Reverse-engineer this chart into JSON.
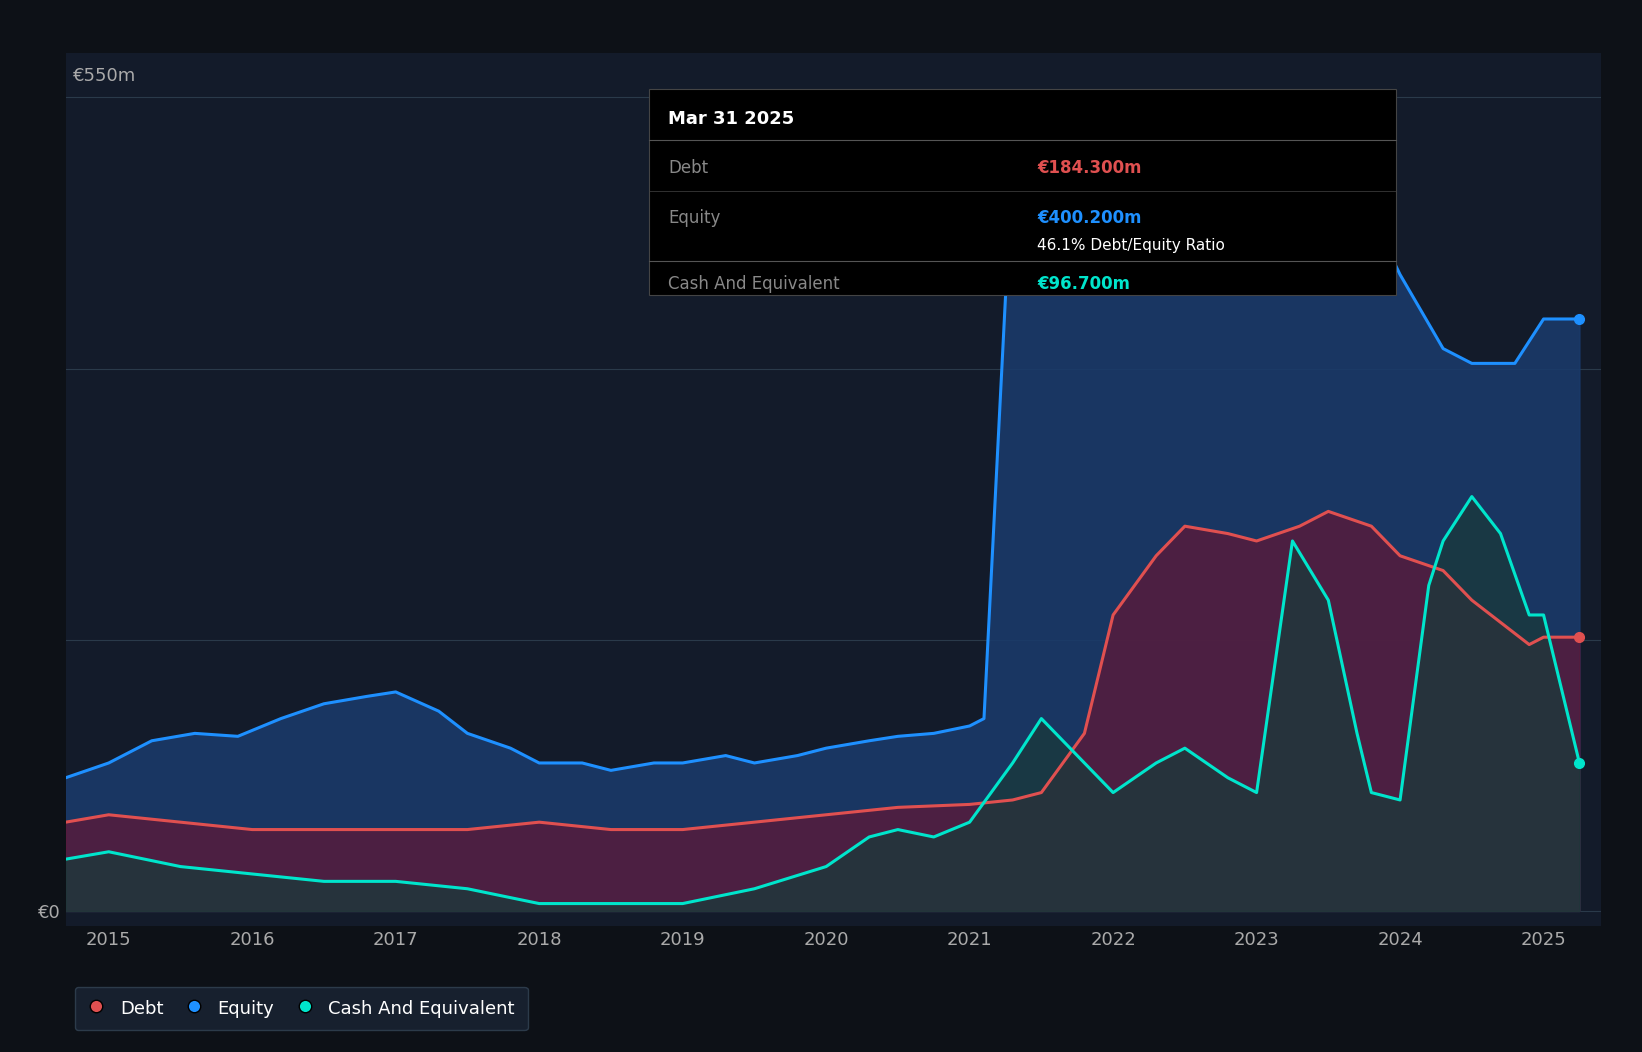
{
  "background_color": "#0d1117",
  "plot_bg_color": "#131b2a",
  "grid_color": "#2a3a4a",
  "ylabel_550": "€550m",
  "ylabel_0": "€0",
  "equity_color": "#1e90ff",
  "equity_fill": "#1a3a6a",
  "debt_color": "#e05050",
  "debt_fill": "#5a1a3a",
  "cash_color": "#00e5cc",
  "cash_fill": "#1a3a3a",
  "equity_data_x": [
    2014.7,
    2015.0,
    2015.3,
    2015.6,
    2015.9,
    2016.2,
    2016.5,
    2016.8,
    2017.0,
    2017.3,
    2017.5,
    2017.8,
    2018.0,
    2018.3,
    2018.5,
    2018.8,
    2019.0,
    2019.3,
    2019.5,
    2019.8,
    2020.0,
    2020.3,
    2020.5,
    2020.75,
    2021.0,
    2021.1,
    2021.3,
    2021.5,
    2021.8,
    2022.0,
    2022.3,
    2022.5,
    2022.8,
    2023.0,
    2023.3,
    2023.5,
    2023.8,
    2024.0,
    2024.3,
    2024.5,
    2024.8,
    2025.0,
    2025.25
  ],
  "equity_data_y": [
    90,
    100,
    115,
    120,
    118,
    130,
    140,
    145,
    148,
    135,
    120,
    110,
    100,
    100,
    95,
    100,
    100,
    105,
    100,
    105,
    110,
    115,
    118,
    120,
    125,
    130,
    510,
    550,
    540,
    530,
    490,
    490,
    460,
    450,
    490,
    470,
    470,
    430,
    380,
    370,
    370,
    400,
    400
  ],
  "debt_data_x": [
    2014.7,
    2015.0,
    2015.5,
    2016.0,
    2016.5,
    2017.0,
    2017.5,
    2018.0,
    2018.5,
    2019.0,
    2019.5,
    2020.0,
    2020.5,
    2021.0,
    2021.3,
    2021.5,
    2021.8,
    2022.0,
    2022.3,
    2022.5,
    2022.8,
    2023.0,
    2023.3,
    2023.5,
    2023.8,
    2024.0,
    2024.3,
    2024.5,
    2024.7,
    2024.9,
    2025.0,
    2025.25
  ],
  "debt_data_y": [
    60,
    65,
    60,
    55,
    55,
    55,
    55,
    60,
    55,
    55,
    60,
    65,
    70,
    72,
    75,
    80,
    120,
    200,
    240,
    260,
    255,
    250,
    260,
    270,
    260,
    240,
    230,
    210,
    195,
    180,
    185,
    185
  ],
  "cash_data_x": [
    2014.7,
    2015.0,
    2015.5,
    2016.0,
    2016.5,
    2017.0,
    2017.5,
    2018.0,
    2018.5,
    2019.0,
    2019.5,
    2020.0,
    2020.3,
    2020.5,
    2020.75,
    2021.0,
    2021.3,
    2021.5,
    2021.8,
    2022.0,
    2022.3,
    2022.5,
    2022.8,
    2023.0,
    2023.25,
    2023.5,
    2023.7,
    2023.8,
    2024.0,
    2024.2,
    2024.3,
    2024.5,
    2024.7,
    2024.9,
    2025.0,
    2025.25
  ],
  "cash_data_y": [
    35,
    40,
    30,
    25,
    20,
    20,
    15,
    5,
    5,
    5,
    15,
    30,
    50,
    55,
    50,
    60,
    100,
    130,
    100,
    80,
    100,
    110,
    90,
    80,
    250,
    210,
    120,
    80,
    75,
    220,
    250,
    280,
    255,
    200,
    200,
    100
  ],
  "tooltip_bg": "#000000",
  "tooltip_title": "Mar 31 2025",
  "tooltip_debt_label": "Debt",
  "tooltip_debt_value": "€184.300m",
  "tooltip_equity_label": "Equity",
  "tooltip_equity_value": "€400.200m",
  "tooltip_ratio": "46.1% Debt/Equity Ratio",
  "tooltip_cash_label": "Cash And Equivalent",
  "tooltip_cash_value": "€96.700m",
  "legend_items": [
    "Debt",
    "Equity",
    "Cash And Equivalent"
  ],
  "legend_colors": [
    "#e05050",
    "#1e90ff",
    "#00e5cc"
  ],
  "xlim": [
    2014.7,
    2025.4
  ],
  "ylim": [
    -10,
    580
  ],
  "grid_levels": [
    0,
    183,
    366,
    550
  ]
}
